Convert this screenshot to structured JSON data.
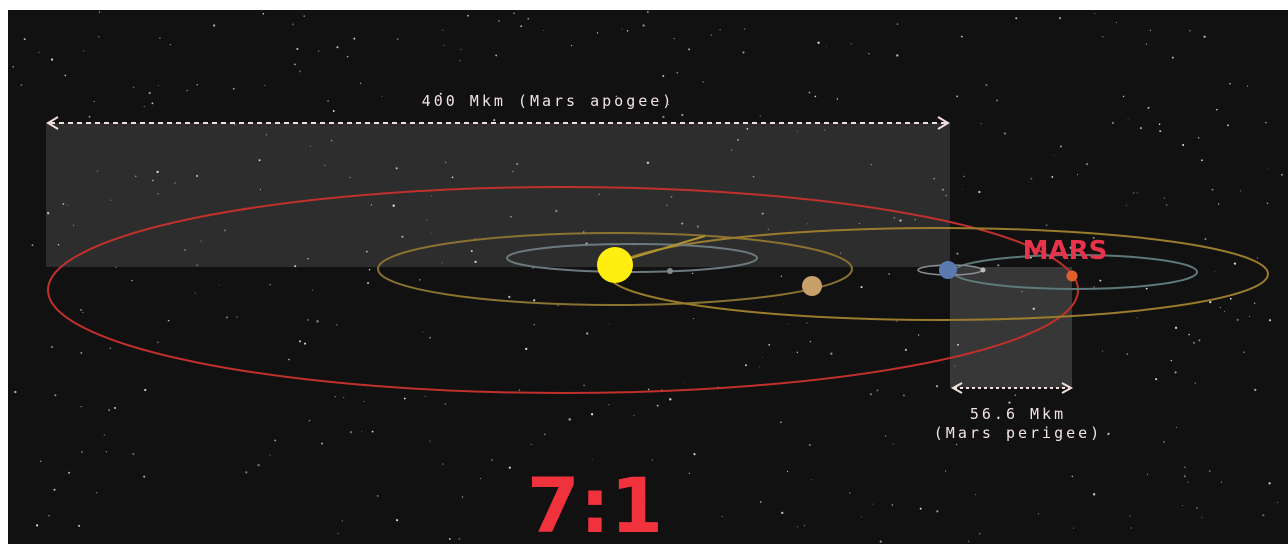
{
  "labels": {
    "apogee": "400 Mkm (Mars apogee)",
    "planet": "MARS",
    "perigee_distance": "56.6 Mkm",
    "perigee_note": "(Mars perigee)",
    "ratio": "7:1"
  }
}
